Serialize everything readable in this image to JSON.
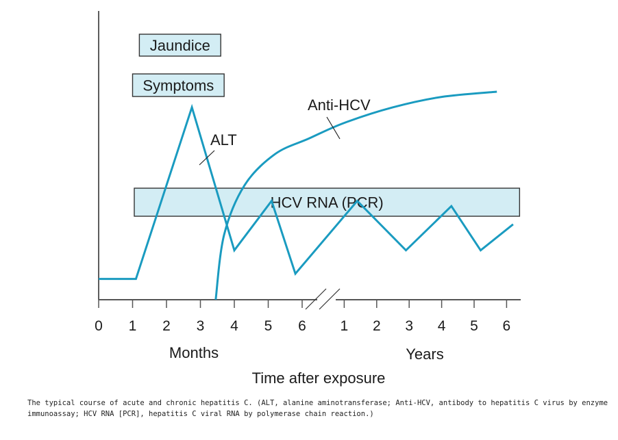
{
  "chart_data": {
    "type": "line",
    "title": "",
    "xlabel": "Time after exposure",
    "segments": [
      {
        "unit_label": "Months",
        "ticks": [
          "0",
          "1",
          "2",
          "3",
          "4",
          "5",
          "6"
        ]
      },
      {
        "unit_label": "Years",
        "ticks": [
          "1",
          "2",
          "3",
          "4",
          "5",
          "6"
        ]
      }
    ],
    "series": [
      {
        "name": "ALT",
        "color": "#1a9bc0",
        "points": [
          {
            "seg": 0,
            "x": 0,
            "y": 0.08
          },
          {
            "seg": 0,
            "x": 1.1,
            "y": 0.08
          },
          {
            "seg": 0,
            "x": 2.75,
            "y": 0.74
          },
          {
            "seg": 0,
            "x": 4.0,
            "y": 0.19
          },
          {
            "seg": 0,
            "x": 5.1,
            "y": 0.38
          },
          {
            "seg": 0,
            "x": 5.8,
            "y": 0.1
          },
          {
            "seg": 1,
            "x": 1.4,
            "y": 0.38
          },
          {
            "seg": 1,
            "x": 2.9,
            "y": 0.19
          },
          {
            "seg": 1,
            "x": 4.3,
            "y": 0.36
          },
          {
            "seg": 1,
            "x": 5.2,
            "y": 0.19
          },
          {
            "seg": 1,
            "x": 6.2,
            "y": 0.29
          }
        ]
      },
      {
        "name": "Anti-HCV",
        "color": "#1a9bc0",
        "points": [
          {
            "seg": 0,
            "x": 3.45,
            "y": 0.0
          },
          {
            "seg": 0,
            "x": 3.7,
            "y": 0.25
          },
          {
            "seg": 0,
            "x": 4.3,
            "y": 0.44
          },
          {
            "seg": 0,
            "x": 5.2,
            "y": 0.56
          },
          {
            "seg": 0,
            "x": 6.2,
            "y": 0.62
          },
          {
            "seg": 1,
            "x": 1.0,
            "y": 0.68
          },
          {
            "seg": 1,
            "x": 2.5,
            "y": 0.74
          },
          {
            "seg": 1,
            "x": 4.0,
            "y": 0.78
          },
          {
            "seg": 1,
            "x": 5.7,
            "y": 0.8
          }
        ]
      }
    ],
    "bars": [
      {
        "name": "Jaundice",
        "label": "Jaundice",
        "start": {
          "seg": 0,
          "x": 1.2
        },
        "end": {
          "seg": 0,
          "x": 3.6
        }
      },
      {
        "name": "Symptoms",
        "label": "Symptoms",
        "start": {
          "seg": 0,
          "x": 1.0
        },
        "end": {
          "seg": 0,
          "x": 3.7
        }
      },
      {
        "name": "HCV RNA (PCR)",
        "label": "HCV RNA (PCR)",
        "start": {
          "seg": 0,
          "x": 1.05
        },
        "end": {
          "seg": 1,
          "x": 6.4
        }
      }
    ],
    "annotations": [
      {
        "text": "ALT",
        "points_to": "ALT"
      },
      {
        "text": "Anti-HCV",
        "points_to": "Anti-HCV"
      }
    ],
    "colors": {
      "curve": "#1a9bc0",
      "box_fill": "#d3edf4",
      "box_border": "#333333",
      "axis": "#555555"
    }
  },
  "caption": "The typical course of acute and chronic hepatitis C. (ALT, alanine aminotransferase; Anti-HCV, antibody to hepatitis C virus by enzyme immunoassay; HCV RNA [PCR], hepatitis C viral RNA by polymerase chain reaction.)"
}
